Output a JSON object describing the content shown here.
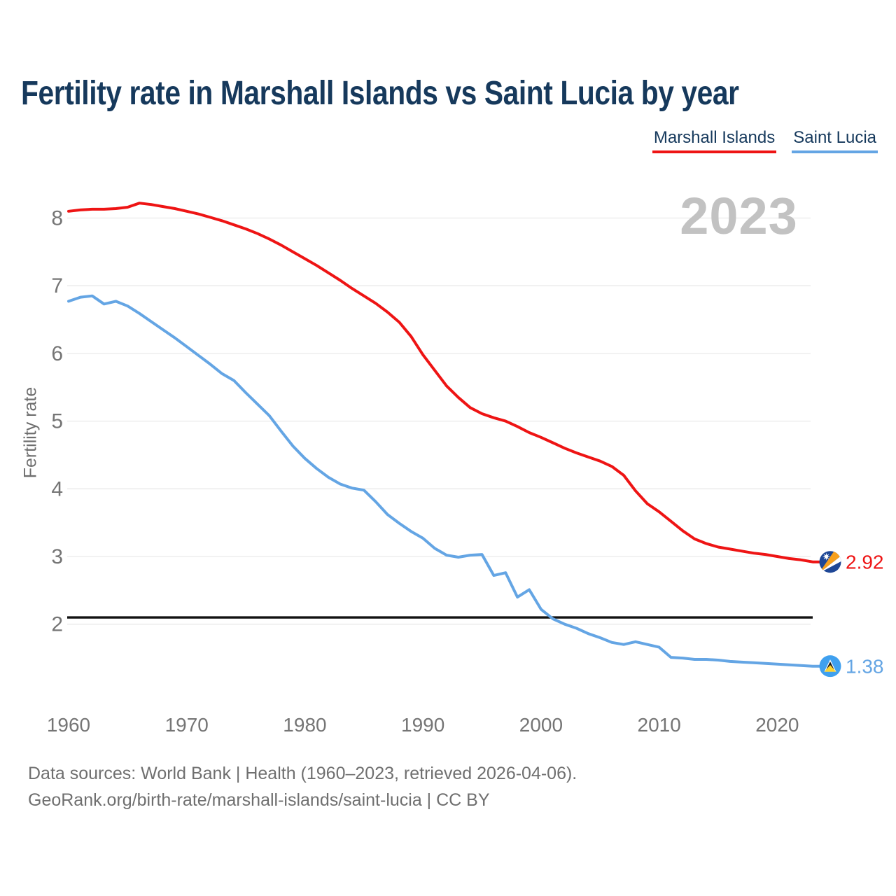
{
  "title": "Fertility rate in Marshall Islands vs Saint Lucia by year",
  "watermark": "2023",
  "legend": [
    {
      "label": "Marshall Islands",
      "color": "#ee1414"
    },
    {
      "label": "Saint Lucia",
      "color": "#64a5e4"
    }
  ],
  "chart_data": {
    "type": "line",
    "title": "Fertility rate in Marshall Islands vs Saint Lucia by year",
    "xlabel": "",
    "ylabel": "Fertility rate",
    "grid": "horizontal",
    "legend_position": "top-right",
    "xlim": [
      1960,
      2023
    ],
    "ylim": [
      1.15,
      8.45
    ],
    "x_ticks": [
      1960,
      1970,
      1980,
      1990,
      2000,
      2010,
      2020
    ],
    "y_ticks": [
      2,
      3,
      4,
      5,
      6,
      7,
      8
    ],
    "reference_line": {
      "value": 2.1,
      "color": "#111111"
    },
    "x": [
      1960,
      1961,
      1962,
      1963,
      1964,
      1965,
      1966,
      1967,
      1968,
      1969,
      1970,
      1971,
      1972,
      1973,
      1974,
      1975,
      1976,
      1977,
      1978,
      1979,
      1980,
      1981,
      1982,
      1983,
      1984,
      1985,
      1986,
      1987,
      1988,
      1989,
      1990,
      1991,
      1992,
      1993,
      1994,
      1995,
      1996,
      1997,
      1998,
      1999,
      2000,
      2001,
      2002,
      2003,
      2004,
      2005,
      2006,
      2007,
      2008,
      2009,
      2010,
      2011,
      2012,
      2013,
      2014,
      2015,
      2016,
      2017,
      2018,
      2019,
      2020,
      2021,
      2022,
      2023
    ],
    "series": [
      {
        "name": "Marshall Islands",
        "color": "#ee1414",
        "flag": "marshall-islands",
        "end_label": "2.92",
        "values": [
          8.1,
          8.12,
          8.13,
          8.13,
          8.14,
          8.16,
          8.22,
          8.2,
          8.17,
          8.14,
          8.1,
          8.06,
          8.01,
          7.96,
          7.9,
          7.84,
          7.77,
          7.69,
          7.6,
          7.5,
          7.4,
          7.3,
          7.19,
          7.08,
          6.96,
          6.85,
          6.74,
          6.61,
          6.46,
          6.25,
          5.98,
          5.75,
          5.52,
          5.35,
          5.2,
          5.11,
          5.05,
          5.0,
          4.92,
          4.83,
          4.76,
          4.68,
          4.6,
          4.53,
          4.47,
          4.41,
          4.33,
          4.2,
          3.97,
          3.78,
          3.66,
          3.52,
          3.38,
          3.26,
          3.19,
          3.14,
          3.11,
          3.08,
          3.05,
          3.03,
          3.0,
          2.97,
          2.95,
          2.92
        ]
      },
      {
        "name": "Saint Lucia",
        "color": "#64a5e4",
        "flag": "saint-lucia",
        "end_label": "1.38",
        "values": [
          6.77,
          6.83,
          6.85,
          6.73,
          6.77,
          6.7,
          6.59,
          6.47,
          6.35,
          6.23,
          6.1,
          5.97,
          5.84,
          5.7,
          5.6,
          5.42,
          5.25,
          5.08,
          4.85,
          4.63,
          4.45,
          4.3,
          4.17,
          4.07,
          4.01,
          3.98,
          3.81,
          3.62,
          3.49,
          3.37,
          3.27,
          3.12,
          3.02,
          2.99,
          3.02,
          3.03,
          2.72,
          2.76,
          2.4,
          2.51,
          2.22,
          2.08,
          2.0,
          1.94,
          1.86,
          1.8,
          1.73,
          1.7,
          1.74,
          1.7,
          1.66,
          1.51,
          1.5,
          1.48,
          1.48,
          1.47,
          1.45,
          1.44,
          1.43,
          1.42,
          1.41,
          1.4,
          1.39,
          1.38
        ]
      }
    ]
  },
  "footer": {
    "line1": "Data sources: World Bank | Health (1960–2023, retrieved 2026-04-06).",
    "line2": "GeoRank.org/birth-rate/marshall-islands/saint-lucia | CC BY"
  }
}
